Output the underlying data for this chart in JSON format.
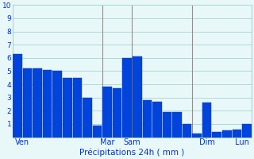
{
  "values": [
    6.3,
    5.2,
    5.2,
    5.1,
    5.0,
    4.5,
    4.5,
    3.0,
    0.9,
    3.8,
    3.7,
    6.0,
    6.1,
    2.8,
    2.7,
    1.9,
    1.9,
    1.0,
    0.3,
    2.6,
    0.4,
    0.5,
    0.6,
    1.0
  ],
  "bar_color": "#0044dd",
  "bar_edge_color": "#0033aa",
  "background_color": "#e8f8f8",
  "grid_color": "#b0d8d8",
  "xlabel": "Précipitations 24h ( mm )",
  "xlabel_color": "#0033cc",
  "tick_color": "#0033cc",
  "ylim": [
    0,
    10
  ],
  "yticks": [
    1,
    2,
    3,
    4,
    5,
    6,
    7,
    8,
    9,
    10
  ],
  "day_labels": [
    "Ven",
    "Mar",
    "Sam",
    "Dim",
    "Lun"
  ],
  "vline_bar_indices": [
    0,
    9,
    12,
    18,
    24
  ],
  "vline_color": "#909090"
}
